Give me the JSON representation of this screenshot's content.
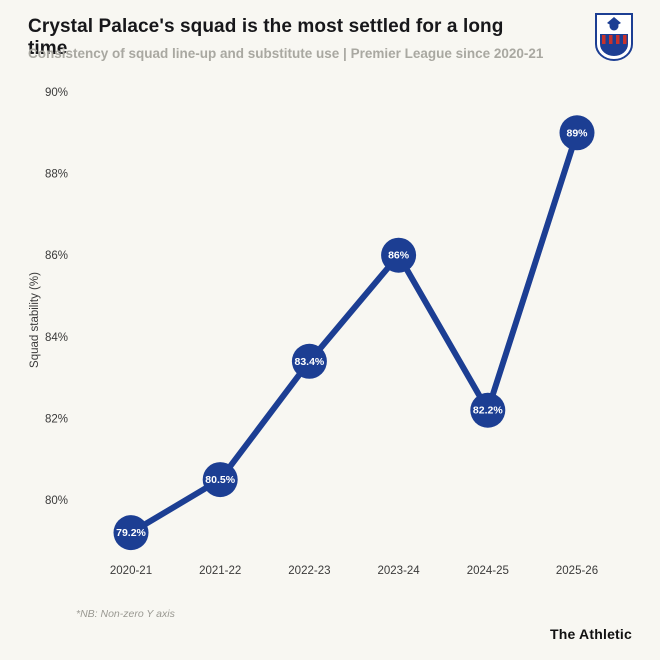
{
  "header": {
    "title": "Crystal Palace's squad is the most settled for a long time",
    "subtitle": "Consistency of squad line-up and substitute use | Premier League since 2020-21",
    "crest_icon": "crystal-palace-crest"
  },
  "chart_data": {
    "type": "line",
    "categories": [
      "2020-21",
      "2021-22",
      "2022-23",
      "2023-24",
      "2024-25",
      "2025-26"
    ],
    "values": [
      79.2,
      80.5,
      83.4,
      86,
      82.2,
      89
    ],
    "point_labels": [
      "79.2%",
      "80.5%",
      "83.4%",
      "86%",
      "82.2%",
      "89%"
    ],
    "title": "Crystal Palace's squad is the most settled for a long time",
    "xlabel": "",
    "ylabel": "Squad stability (%)",
    "yticks": [
      80,
      82,
      84,
      86,
      88,
      90
    ],
    "ylim": [
      78.8,
      90.5
    ],
    "grid": false,
    "legend": "none",
    "line_color": "#1c3e93",
    "point_color": "#1c3e93",
    "point_text_color": "#ffffff"
  },
  "footer": {
    "note": "*NB: Non-zero Y axis",
    "brand": "The Athletic"
  },
  "colors": {
    "background": "#f8f7f2",
    "title_text": "#17171a",
    "subtitle_text": "#a9a8a1",
    "axis_text": "#3a3a3a",
    "accent_blue": "#1c3e93",
    "crest_red": "#c8322b"
  }
}
